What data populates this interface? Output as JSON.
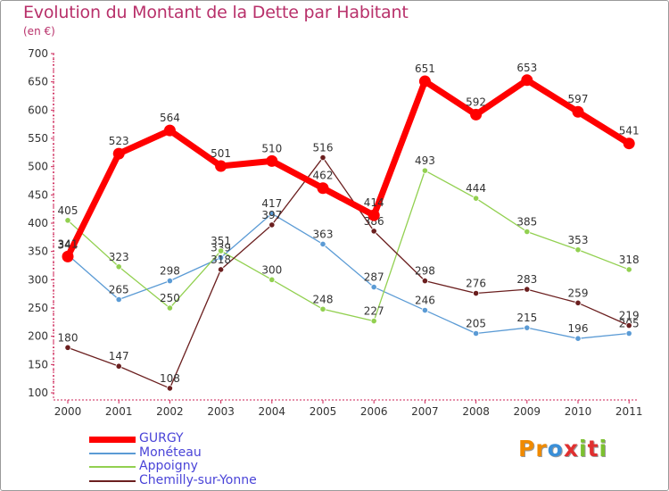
{
  "chart_data": {
    "type": "line",
    "title": "Evolution du Montant de la Dette par Habitant",
    "subtitle": "(en €)",
    "xlabel": "",
    "ylabel": "",
    "ylim": [
      100,
      700
    ],
    "yticks": [
      100,
      150,
      200,
      250,
      300,
      350,
      400,
      450,
      500,
      550,
      600,
      650,
      700
    ],
    "grid": false,
    "legend_position": "bottom-left",
    "x": [
      "2000",
      "2001",
      "2002",
      "2003",
      "2004",
      "2005",
      "2006",
      "2007",
      "2008",
      "2009",
      "2010",
      "2011"
    ],
    "series": [
      {
        "name": "Monéteau",
        "color": "#5b9bd5",
        "values": [
          344,
          265,
          298,
          339,
          417,
          363,
          287,
          246,
          205,
          215,
          196,
          205
        ]
      },
      {
        "name": "Appoigny",
        "color": "#92d050",
        "values": [
          405,
          323,
          250,
          351,
          300,
          248,
          227,
          493,
          444,
          385,
          353,
          318
        ]
      },
      {
        "name": "Chemilly-sur-Yonne",
        "color": "#6b1f1f",
        "values": [
          180,
          147,
          108,
          318,
          397,
          516,
          386,
          298,
          276,
          283,
          259,
          219
        ]
      },
      {
        "name": "GURGY",
        "color": "#ff0000",
        "values": [
          341,
          523,
          564,
          501,
          510,
          462,
          414,
          651,
          592,
          653,
          597,
          541
        ]
      }
    ],
    "legend_order": [
      "GURGY",
      "Monéteau",
      "Appoigny",
      "Chemilly-sur-Yonne"
    ]
  },
  "branding": {
    "logo_letters": [
      "P",
      "r",
      "o",
      "x",
      "i",
      "t",
      "i"
    ],
    "logo_colors": [
      "#f08a00",
      "#f08a00",
      "#3a8fd8",
      "#e03030",
      "#7cc030",
      "#e03030",
      "#7cc030"
    ]
  }
}
